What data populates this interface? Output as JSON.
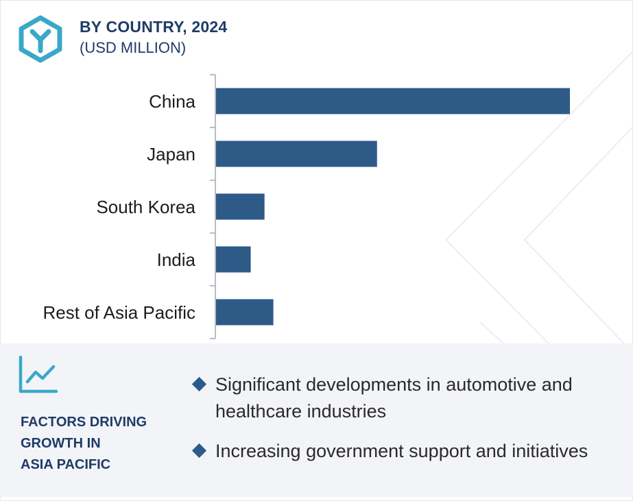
{
  "header": {
    "title": "BY COUNTRY, 2024",
    "subtitle": "(USD MILLION)",
    "logo_icon": "cube-y-logo-icon"
  },
  "colors": {
    "bar": "#2e5a88",
    "title": "#1f3b66",
    "accent": "#3aa8c8",
    "panel_bg": "#f3f4f8"
  },
  "chart_data": {
    "type": "bar",
    "orientation": "horizontal",
    "title": "BY COUNTRY, 2024",
    "xlabel": "",
    "ylabel": "",
    "unit": "(USD MILLION)",
    "categories": [
      "China",
      "Japan",
      "South Korea",
      "India",
      "Rest of Asia Pacific"
    ],
    "values": [
      100,
      45.5,
      13.7,
      9.8,
      16.2
    ],
    "xlim": [
      0,
      100
    ],
    "grid": false,
    "legend": "none"
  },
  "factors": {
    "icon": "line-chart-icon",
    "heading_lines": [
      "FACTORS DRIVING",
      "GROWTH IN",
      "ASIA PACIFIC"
    ],
    "bullets": [
      [
        "Significant developments in automotive and",
        "healthcare industries"
      ],
      [
        "Increasing government support and initiatives"
      ]
    ]
  }
}
